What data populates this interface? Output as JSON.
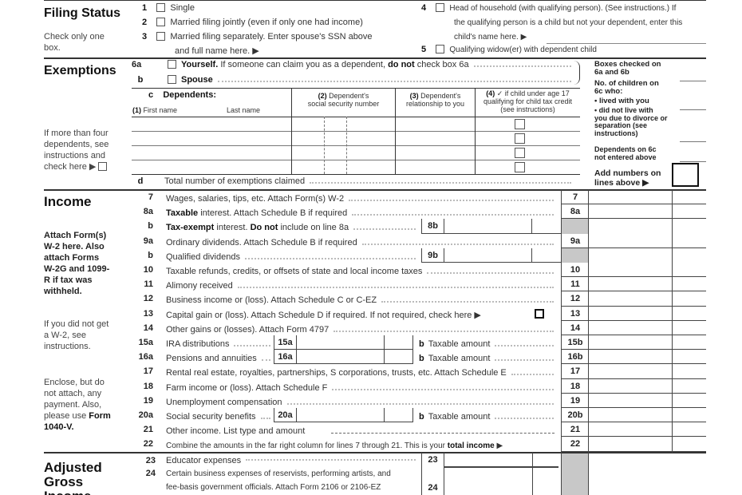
{
  "filing_status": {
    "heading": "Filing Status",
    "note": "Check only one box.",
    "options": [
      {
        "num": "1",
        "label": "Single"
      },
      {
        "num": "2",
        "label": "Married filing jointly (even if only one had income)"
      },
      {
        "num": "3",
        "label": "Married filing separately. Enter spouse's SSN above",
        "label2": "and full name here. ▶"
      },
      {
        "num": "4",
        "label": "Head of household (with qualifying person). (See instructions.) If",
        "label2": "the qualifying person is a child but not your dependent, enter this",
        "label3": "child's name here. ▶"
      },
      {
        "num": "5",
        "label": "Qualifying widow(er) with dependent child"
      }
    ]
  },
  "exemptions": {
    "heading": "Exemptions",
    "line_6a_num": "6a",
    "line_6a_bold": "Yourself.",
    "line_6a_text": " If someone can claim you as a dependent, ",
    "line_6a_bold2": "do not",
    "line_6a_text2": " check box 6a",
    "line_b_num": "b",
    "line_b_label": "Spouse",
    "line_c_num": "c",
    "dependents_label": "Dependents:",
    "col1_num": "(1)",
    "col1_first": "First name",
    "col1_last": "Last name",
    "col2_num": "(2)",
    "col2": "Dependent's",
    "col2b": "social security number",
    "col3_num": "(3)",
    "col3": "Dependent's",
    "col3b": "relationship to you",
    "col4_num": "(4)",
    "col4": "✓ if child under age 17",
    "col4b": "qualifying for child tax credit",
    "col4c": "(see instructions)",
    "more_note": "If more than four dependents, see instructions and check here ▶",
    "line_d_num": "d",
    "line_d_label": "Total number of exemptions claimed",
    "right": {
      "boxes_checked": "Boxes checked on 6a and 6b",
      "children": "No. of children on 6c who:",
      "lived": "• lived with you",
      "not_lived": "• did not live with you due to divorce or separation (see instructions)",
      "dependents_not": "Dependents on 6c not entered above",
      "add": "Add numbers on lines above ▶"
    }
  },
  "income": {
    "heading": "Income",
    "attach_note": "Attach Form(s) W-2 here. Also attach Forms W-2G and 1099-R if tax was withheld.",
    "w2_note": "If you did not get a W-2, see instructions.",
    "enclose_note": "Enclose, but do not attach, any payment. Also, please use",
    "enclose_bold": "Form 1040-V.",
    "lines": [
      {
        "num": "7",
        "type": "full",
        "parts": [
          [
            "Wages, salaries, tips, etc. Attach Form(s) W-2",
            0
          ]
        ],
        "box": "7"
      },
      {
        "num": "8a",
        "type": "full",
        "parts": [
          [
            "Taxable",
            1
          ],
          [
            " interest. Attach Schedule B if required",
            0
          ]
        ],
        "box": "8a"
      },
      {
        "num": "b",
        "type": "mid",
        "parts": [
          [
            "Tax-exempt",
            1
          ],
          [
            " interest. ",
            0
          ],
          [
            "Do not",
            1
          ],
          [
            " include on line 8a",
            0
          ]
        ],
        "mid": "8b"
      },
      {
        "num": "9a",
        "type": "full",
        "parts": [
          [
            "Ordinary dividends. Attach Schedule B if required",
            0
          ]
        ],
        "box": "9a"
      },
      {
        "num": "b",
        "type": "mid",
        "parts": [
          [
            "Qualified dividends",
            0
          ]
        ],
        "mid": "9b"
      },
      {
        "num": "10",
        "type": "full",
        "parts": [
          [
            "Taxable refunds, credits, or offsets of state and local income taxes",
            0
          ]
        ],
        "box": "10"
      },
      {
        "num": "11",
        "type": "full",
        "parts": [
          [
            "Alimony received",
            0
          ]
        ],
        "box": "11"
      },
      {
        "num": "12",
        "type": "full",
        "parts": [
          [
            "Business income or (loss). Attach Schedule C or C-EZ",
            0
          ]
        ],
        "box": "12"
      },
      {
        "num": "13",
        "type": "check",
        "parts": [
          [
            "Capital gain or (loss). Attach Schedule D if required. If not required, check here ▶",
            0
          ]
        ],
        "box": "13"
      },
      {
        "num": "14",
        "type": "full",
        "parts": [
          [
            "Other gains or (losses). Attach Form 4797",
            0
          ]
        ],
        "box": "14"
      },
      {
        "num": "15a",
        "type": "split",
        "parts": [
          [
            "IRA distributions",
            0
          ]
        ],
        "sub": "15a",
        "b_num": "b",
        "b_label": "Taxable amount",
        "box": "15b"
      },
      {
        "num": "16a",
        "type": "split",
        "parts": [
          [
            "Pensions and annuities",
            0
          ]
        ],
        "sub": "16a",
        "b_num": "b",
        "b_label": "Taxable amount",
        "box": "16b"
      },
      {
        "num": "17",
        "type": "full",
        "parts": [
          [
            "Rental real estate, royalties, partnerships, S corporations, trusts, etc. Attach Schedule E",
            0
          ]
        ],
        "box": "17"
      },
      {
        "num": "18",
        "type": "full",
        "parts": [
          [
            "Farm income or (loss). Attach Schedule F",
            0
          ]
        ],
        "box": "18"
      },
      {
        "num": "19",
        "type": "full",
        "parts": [
          [
            "Unemployment compensation",
            0
          ]
        ],
        "box": "19"
      },
      {
        "num": "20a",
        "type": "split",
        "parts": [
          [
            "Social security benefits",
            0
          ]
        ],
        "sub": "20a",
        "b_num": "b",
        "b_label": "Taxable amount",
        "box": "20b"
      },
      {
        "num": "21",
        "type": "other",
        "parts": [
          [
            "Other income. List type and amount",
            0
          ]
        ],
        "box": "21"
      },
      {
        "num": "22",
        "type": "total",
        "parts": [
          [
            "Combine the amounts in the far right column for lines 7 through 21. This is your ",
            0
          ],
          [
            "total income",
            1
          ],
          [
            " ▶",
            0
          ]
        ],
        "box": "22"
      }
    ]
  },
  "agi": {
    "heading": "Adjusted Gross Income",
    "line_23_num": "23",
    "line_23_label": "Educator expenses",
    "line_23_box": "23",
    "line_24_num": "24",
    "line_24_label": "Certain business expenses of reservists, performing artists, and",
    "line_24_label2": "fee-basis government officials. Attach Form 2106 or 2106-EZ",
    "line_24_box": "24"
  }
}
